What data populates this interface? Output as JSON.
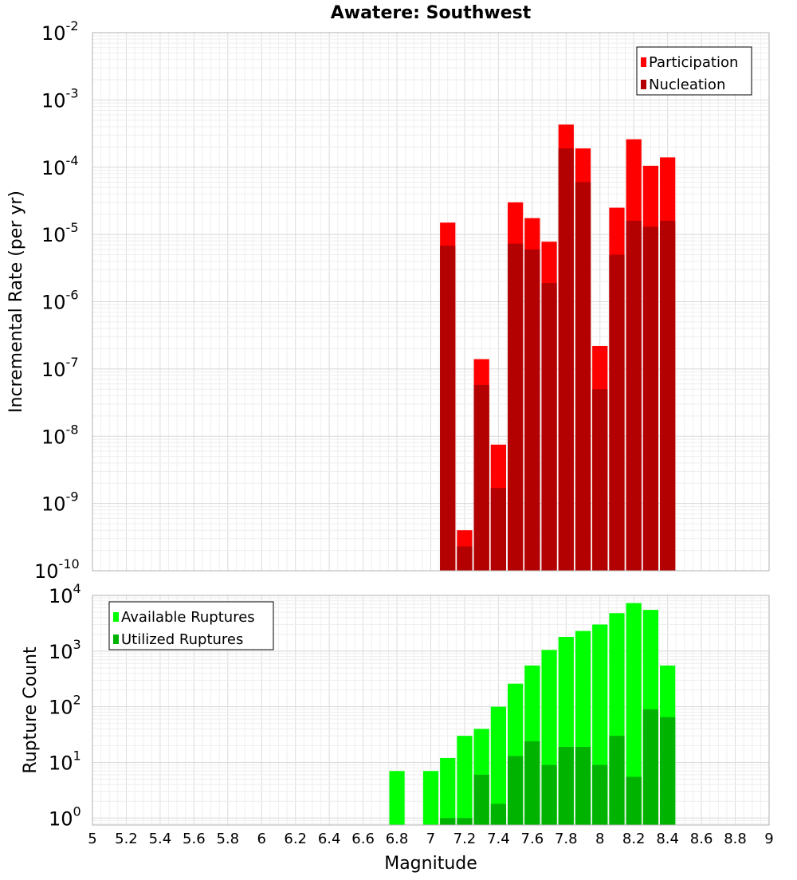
{
  "chart_data": [
    {
      "type": "bar",
      "title": "Awatere: Southwest",
      "xlabel": "",
      "ylabel": "Incremental Rate (per yr)",
      "xlim": [
        5,
        9
      ],
      "ylim": [
        1e-10,
        0.01
      ],
      "yscale": "log",
      "y_tick_exponents": [
        "-10",
        "-9",
        "-8",
        "-7",
        "-6",
        "-5",
        "-4",
        "-3",
        "-2"
      ],
      "y_tick_base": "10",
      "grid": true,
      "legend_position": "top-right",
      "x": [
        7.1,
        7.2,
        7.3,
        7.4,
        7.5,
        7.6,
        7.7,
        7.8,
        7.9,
        8.0,
        8.1,
        8.2,
        8.3,
        8.4
      ],
      "series": [
        {
          "name": "Participation",
          "color": "#ff0000",
          "values": [
            1.5e-05,
            4e-10,
            1.4e-07,
            7.5e-09,
            3e-05,
            1.75e-05,
            7.8e-06,
            0.00043,
            0.00019,
            2.2e-07,
            2.5e-05,
            0.00026,
            0.000105,
            0.00014
          ]
        },
        {
          "name": "Nucleation",
          "color": "#b30000",
          "values": [
            6.8e-06,
            2.3e-10,
            5.8e-08,
            1.7e-09,
            7.3e-06,
            6e-06,
            1.9e-06,
            0.00019,
            6e-05,
            5e-08,
            5e-06,
            1.6e-05,
            1.3e-05,
            1.6e-05
          ]
        }
      ]
    },
    {
      "type": "bar",
      "title": "",
      "xlabel": "Magnitude",
      "ylabel": "Rupture Count",
      "xlim": [
        5,
        9
      ],
      "ylim": [
        0.75,
        10000
      ],
      "yscale": "log",
      "y_tick_exponents": [
        "0",
        "1",
        "2",
        "3",
        "4"
      ],
      "y_tick_base": "10",
      "x_ticks": [
        "5",
        "5.2",
        "5.4",
        "5.6",
        "5.8",
        "6",
        "6.2",
        "6.4",
        "6.6",
        "6.8",
        "7",
        "7.2",
        "7.4",
        "7.6",
        "7.8",
        "8",
        "8.2",
        "8.4",
        "8.6",
        "8.8",
        "9"
      ],
      "grid": true,
      "legend_position": "top-left",
      "x": [
        6.8,
        7.0,
        7.1,
        7.2,
        7.3,
        7.4,
        7.5,
        7.6,
        7.7,
        7.8,
        7.9,
        8.0,
        8.1,
        8.2,
        8.3,
        8.4
      ],
      "series": [
        {
          "name": "Available Ruptures",
          "color": "#00ff00",
          "values": [
            7,
            7,
            12,
            30,
            40,
            100,
            260,
            550,
            1050,
            1800,
            2300,
            3000,
            4800,
            7300,
            5500,
            550
          ]
        },
        {
          "name": "Utilized Ruptures",
          "color": "#00b300",
          "values": [
            null,
            null,
            1,
            1,
            6,
            1.8,
            13,
            24,
            9,
            19,
            19,
            9,
            30,
            5.5,
            90,
            65
          ]
        }
      ]
    }
  ]
}
